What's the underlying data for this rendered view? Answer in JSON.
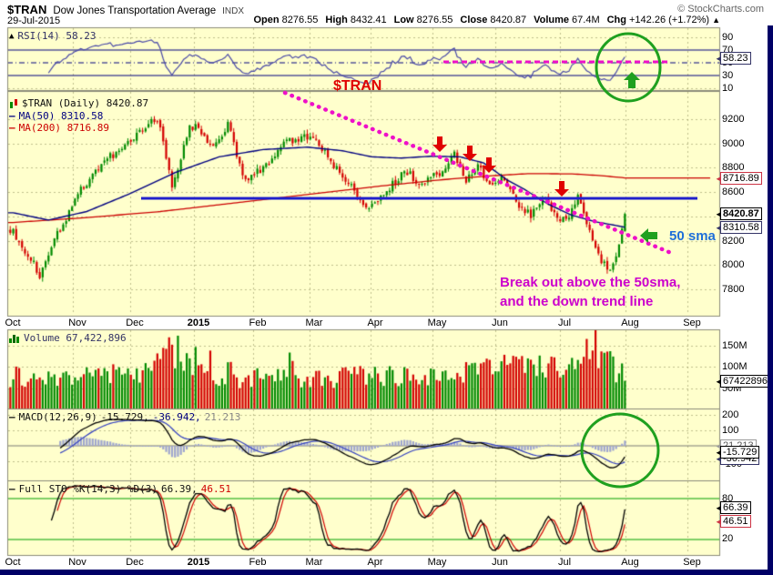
{
  "header": {
    "symbol": "$TRAN",
    "name": "Dow Jones Transportation Average",
    "exchange": "INDX",
    "credit": "© StockCharts.com",
    "date": "29-Jul-2015",
    "quote": [
      {
        "label": "Open",
        "value": "8276.55"
      },
      {
        "label": "High",
        "value": "8432.41"
      },
      {
        "label": "Low",
        "value": "8276.55"
      },
      {
        "label": "Close",
        "value": "8420.87"
      },
      {
        "label": "Volume",
        "value": "67.4M"
      },
      {
        "label": "Chg",
        "value": "+142.26 (+1.72%)"
      }
    ],
    "chg_arrow": "▲"
  },
  "rsi_panel": {
    "legend": "RSI(14) 58.23",
    "value_box": "58.23",
    "ticks": [
      "90",
      "70",
      "50",
      "30",
      "10"
    ]
  },
  "main_panel": {
    "legend_symbol": "$TRAN (Daily) 8420.87",
    "legend_ma50": "MA(50) 8310.58",
    "legend_ma200": "MA(200) 8716.89",
    "ticks": [
      "9200",
      "9000",
      "8800",
      "8600",
      "8200",
      "8000",
      "7800"
    ],
    "box_ma200": "8716.89",
    "box_close": "8420.87",
    "box_ma50": "8310.58"
  },
  "volume_panel": {
    "legend": "Volume 67,422,896",
    "ticks": [
      "150M",
      "100M",
      "50M"
    ],
    "value_box": "67422896"
  },
  "macd_panel": {
    "legend_name": "MACD(12,26,9)",
    "legend_v1": "-15.729,",
    "legend_v2": "-36.942,",
    "legend_v3": "21.213",
    "ticks": [
      "200",
      "100",
      "-100"
    ],
    "box_hist": "21.213",
    "box_macd": "-15.729",
    "box_signal": "-36.942"
  },
  "sto_panel": {
    "legend_name": "Full STO %K(14,3) %D(3)",
    "legend_k": "66.39,",
    "legend_d": "46.51",
    "ticks": [
      "80",
      "20"
    ],
    "box_k": "66.39",
    "box_d": "46.51"
  },
  "months": [
    "Oct",
    "Nov",
    "Dec",
    "2015",
    "Feb",
    "Mar",
    "Apr",
    "May",
    "Jun",
    "Jul",
    "Aug",
    "Sep"
  ],
  "annotations": {
    "symbol_label": "$TRAN",
    "sma_label": "50 sma",
    "breakout_line1": "Break out above the 50sma,",
    "breakout_line2": "and the down trend line"
  },
  "colors": {
    "background": "#FFFFCC",
    "candle_up": "#008A00",
    "candle_down": "#D40000",
    "ma50": "#000080",
    "ma200": "#CC0000",
    "rsi_line": "#4A4AA8",
    "rsi_bands": "#000080",
    "macd_line": "#000000",
    "macd_signal": "#3340C0",
    "macd_hist": "#9FA6CF",
    "sto_k": "#000000",
    "sto_d": "#D00000",
    "sto_bands": "#00A000",
    "annotation_green": "#1FA01F",
    "annotation_red": "#E00000",
    "annotation_magenta": "#EE10C8",
    "annotation_text_magenta": "#CC00CC",
    "annotation_blue": "#1E6FD9",
    "support_line": "#2222CC"
  },
  "chart_data": {
    "type": "candlestick",
    "title": "$TRAN Dow Jones Transportation Average (Daily)",
    "x_axis": {
      "start": "Oct 2014",
      "end": "Sep 2015",
      "months": [
        "Oct",
        "Nov",
        "Dec",
        "2015",
        "Feb",
        "Mar",
        "Apr",
        "May",
        "Jun",
        "Jul",
        "Aug",
        "Sep"
      ]
    },
    "y_axis": {
      "range": [
        7583,
        9395
      ],
      "ticks": [
        7800,
        8000,
        8200,
        8400,
        8600,
        8800,
        9000,
        9200
      ]
    },
    "last_bar": {
      "date": "29-Jul-2015",
      "open": 8276.55,
      "high": 8432.41,
      "low": 8276.55,
      "close": 8420.87,
      "volume": 67422896,
      "change": 142.26,
      "change_pct": 1.72
    },
    "close_anchors": [
      [
        0,
        8280
      ],
      [
        6,
        8050
      ],
      [
        9,
        7920
      ],
      [
        13,
        8150
      ],
      [
        22,
        8590
      ],
      [
        32,
        8870
      ],
      [
        41,
        9060
      ],
      [
        46,
        9180
      ],
      [
        50,
        9140
      ],
      [
        54,
        8640
      ],
      [
        60,
        9150
      ],
      [
        64,
        9100
      ],
      [
        68,
        8950
      ],
      [
        73,
        9160
      ],
      [
        79,
        8680
      ],
      [
        85,
        8800
      ],
      [
        93,
        9020
      ],
      [
        99,
        9060
      ],
      [
        104,
        8980
      ],
      [
        112,
        8740
      ],
      [
        120,
        8480
      ],
      [
        126,
        8580
      ],
      [
        133,
        8780
      ],
      [
        139,
        8660
      ],
      [
        146,
        8780
      ],
      [
        150,
        8900
      ],
      [
        154,
        8700
      ],
      [
        158,
        8820
      ],
      [
        162,
        8660
      ],
      [
        166,
        8730
      ],
      [
        171,
        8520
      ],
      [
        176,
        8400
      ],
      [
        180,
        8560
      ],
      [
        184,
        8430
      ],
      [
        188,
        8350
      ],
      [
        192,
        8580
      ],
      [
        196,
        8280
      ],
      [
        200,
        8040
      ],
      [
        203,
        7950
      ],
      [
        206,
        8140
      ],
      [
        207,
        8276.55
      ],
      [
        208,
        8420.87
      ]
    ],
    "ma50": {
      "period": 50,
      "last": 8310.58,
      "path": [
        [
          0,
          8430
        ],
        [
          12,
          8370
        ],
        [
          25,
          8440
        ],
        [
          40,
          8590
        ],
        [
          55,
          8760
        ],
        [
          70,
          8890
        ],
        [
          85,
          8950
        ],
        [
          100,
          8970
        ],
        [
          112,
          8940
        ],
        [
          122,
          8890
        ],
        [
          132,
          8880
        ],
        [
          142,
          8895
        ],
        [
          152,
          8890
        ],
        [
          160,
          8840
        ],
        [
          168,
          8700
        ],
        [
          174,
          8620
        ],
        [
          182,
          8500
        ],
        [
          190,
          8410
        ],
        [
          198,
          8355
        ],
        [
          204,
          8330
        ],
        [
          208,
          8310.58
        ]
      ]
    },
    "ma200": {
      "period": 200,
      "last": 8716.89,
      "path": [
        [
          0,
          8350
        ],
        [
          25,
          8390
        ],
        [
          50,
          8440
        ],
        [
          75,
          8510
        ],
        [
          100,
          8580
        ],
        [
          125,
          8650
        ],
        [
          145,
          8700
        ],
        [
          160,
          8730
        ],
        [
          175,
          8752
        ],
        [
          190,
          8750
        ],
        [
          200,
          8735
        ],
        [
          208,
          8716.89
        ]
      ]
    },
    "volume_anchors_millions": [
      [
        0,
        60
      ],
      [
        15,
        65
      ],
      [
        30,
        75
      ],
      [
        45,
        85
      ],
      [
        50,
        120
      ],
      [
        56,
        135
      ],
      [
        62,
        85
      ],
      [
        70,
        70
      ],
      [
        80,
        72
      ],
      [
        90,
        68
      ],
      [
        100,
        65
      ],
      [
        110,
        70
      ],
      [
        120,
        80
      ],
      [
        130,
        72
      ],
      [
        140,
        70
      ],
      [
        150,
        78
      ],
      [
        160,
        85
      ],
      [
        168,
        100
      ],
      [
        176,
        95
      ],
      [
        184,
        90
      ],
      [
        190,
        105
      ],
      [
        196,
        135
      ],
      [
        200,
        125
      ],
      [
        204,
        95
      ],
      [
        207,
        80
      ],
      [
        208,
        67.42
      ]
    ],
    "indicators": {
      "rsi": {
        "period": 14,
        "last": 58.23,
        "overbought": 70,
        "oversold": 30,
        "midline": 50
      },
      "macd": {
        "params": [
          12,
          26,
          9
        ],
        "macd": -15.729,
        "signal": -36.942,
        "hist": 21.213
      },
      "full_sto": {
        "params": "%K(14,3) %D(3)",
        "k": 66.39,
        "d": 46.51,
        "overbought": 80,
        "oversold": 20
      }
    },
    "overlays": {
      "support_line_price": 8550,
      "downtrend_line": {
        "from_price": 9390,
        "to_price": 8150
      },
      "rsi_highlight_level": 58,
      "red_arrow_count": 4
    },
    "gen": {
      "seed": 42,
      "close_noise": 34,
      "wick": 36,
      "open_noise": 12,
      "days": 209,
      "lead_days": 2
    }
  }
}
